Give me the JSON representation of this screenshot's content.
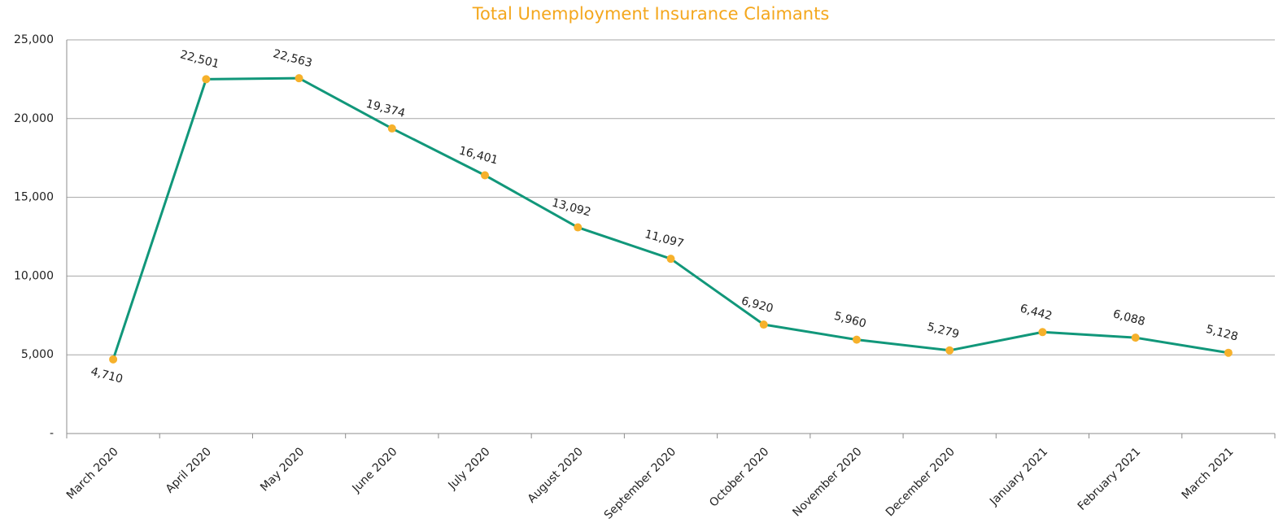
{
  "chart_data": {
    "type": "line",
    "title": "Total Unemployment Insurance Claimants",
    "categories": [
      "March 2020",
      "April 2020",
      "May 2020",
      "June 2020",
      "July 2020",
      "August 2020",
      "September 2020",
      "October 2020",
      "November 2020",
      "December 2020",
      "January 2021",
      "February 2021",
      "March 2021"
    ],
    "values": [
      4710,
      22501,
      22563,
      19374,
      16401,
      13092,
      11097,
      6920,
      5960,
      5279,
      6442,
      6088,
      5128
    ],
    "value_labels": [
      "4,710",
      "22,501",
      "22,563",
      "19,374",
      "16,401",
      "13,092",
      "11,097",
      "6,920",
      "5,960",
      "5,279",
      "6,442",
      "6,088",
      "5,128"
    ],
    "color": "#11977a",
    "marker_color": "#f6b12b",
    "ylim": [
      0,
      25000
    ],
    "yticks": [
      {
        "value": 0,
        "label": "-"
      },
      {
        "value": 5000,
        "label": "5,000"
      },
      {
        "value": 10000,
        "label": "10,000"
      },
      {
        "value": 15000,
        "label": "15,000"
      },
      {
        "value": 20000,
        "label": "20,000"
      },
      {
        "value": 25000,
        "label": "25,000"
      }
    ],
    "grid": true
  }
}
